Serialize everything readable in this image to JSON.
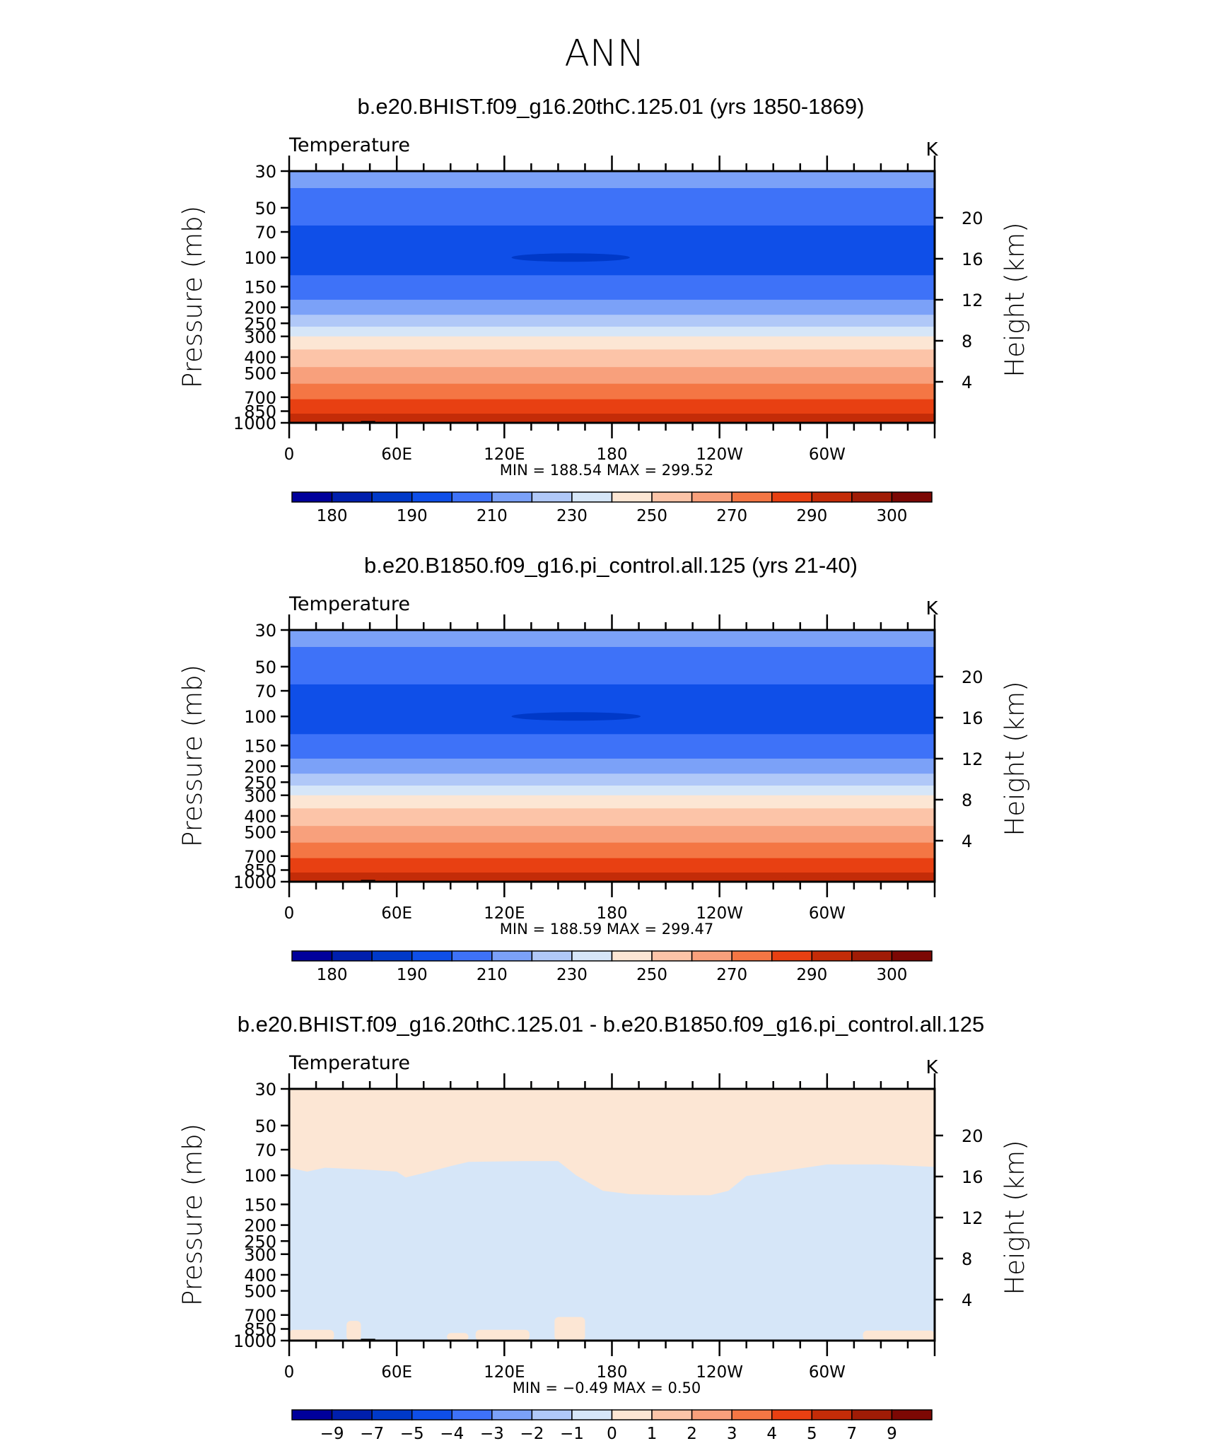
{
  "figure_title": "ANN",
  "chart_data": [
    {
      "type": "heatmap",
      "title": "b.e20.BHIST.f09_g16.20thC.125.01 (yrs 1850-1869)",
      "left_string": "Temperature",
      "units": "K",
      "ylabel": "Pressure (mb)",
      "ylabel_right": "Height (km)",
      "x_ticks": [
        "0",
        "60E",
        "120E",
        "180",
        "120W",
        "60W"
      ],
      "x_range_deg": [
        0,
        360
      ],
      "y_ticks": [
        "30",
        "50",
        "70",
        "100",
        "150",
        "200",
        "250",
        "300",
        "400",
        "500",
        "700",
        "850",
        "1000"
      ],
      "y_tick_values_mb": [
        30,
        50,
        70,
        100,
        150,
        200,
        250,
        300,
        400,
        500,
        700,
        850,
        1000
      ],
      "y_ticks_right": [
        "20",
        "16",
        "12",
        "8",
        "4"
      ],
      "y_ticks_right_values_km": [
        20,
        16,
        12,
        8,
        4
      ],
      "stats_text": "MIN =  188.54   MAX =  299.52",
      "min": 188.54,
      "max": 299.52,
      "colorbar_colors": [
        "#00009b",
        "#001fad",
        "#0039c8",
        "#0f4fe8",
        "#3e72f8",
        "#7ba1f8",
        "#b0c8f8",
        "#d6e6f8",
        "#fce6d4",
        "#fcc4a8",
        "#f8a07c",
        "#f47644",
        "#e84012",
        "#c42c08",
        "#a01c06",
        "#7c0804"
      ],
      "colorbar_labels": [
        "180",
        "190",
        "210",
        "230",
        "250",
        "270",
        "290",
        "300"
      ],
      "bands": [
        {
          "p_top": 30,
          "p_bot": 38,
          "color_index": 5
        },
        {
          "p_top": 38,
          "p_bot": 64,
          "color_index": 4
        },
        {
          "p_top": 64,
          "p_bot": 128,
          "color_index": 3
        },
        {
          "p_top": 128,
          "p_bot": 180,
          "color_index": 4
        },
        {
          "p_top": 180,
          "p_bot": 222,
          "color_index": 5
        },
        {
          "p_top": 222,
          "p_bot": 262,
          "color_index": 6
        },
        {
          "p_top": 262,
          "p_bot": 300,
          "color_index": 7
        },
        {
          "p_top": 300,
          "p_bot": 360,
          "color_index": 8
        },
        {
          "p_top": 360,
          "p_bot": 460,
          "color_index": 9
        },
        {
          "p_top": 460,
          "p_bot": 580,
          "color_index": 10
        },
        {
          "p_top": 580,
          "p_bot": 720,
          "color_index": 11
        },
        {
          "p_top": 720,
          "p_bot": 880,
          "color_index": 12
        },
        {
          "p_top": 880,
          "p_bot": 1000,
          "color_index": 13
        }
      ],
      "cold_core": {
        "lon": 157,
        "p": 100,
        "lon_halfwidth": 33,
        "color_index": 2
      }
    },
    {
      "type": "heatmap",
      "title": "b.e20.B1850.f09_g16.pi_control.all.125 (yrs 21-40)",
      "left_string": "Temperature",
      "units": "K",
      "ylabel": "Pressure (mb)",
      "ylabel_right": "Height (km)",
      "x_ticks": [
        "0",
        "60E",
        "120E",
        "180",
        "120W",
        "60W"
      ],
      "x_range_deg": [
        0,
        360
      ],
      "y_ticks": [
        "30",
        "50",
        "70",
        "100",
        "150",
        "200",
        "250",
        "300",
        "400",
        "500",
        "700",
        "850",
        "1000"
      ],
      "y_tick_values_mb": [
        30,
        50,
        70,
        100,
        150,
        200,
        250,
        300,
        400,
        500,
        700,
        850,
        1000
      ],
      "y_ticks_right": [
        "20",
        "16",
        "12",
        "8",
        "4"
      ],
      "y_ticks_right_values_km": [
        20,
        16,
        12,
        8,
        4
      ],
      "stats_text": "MIN =  188.59   MAX =  299.47",
      "min": 188.59,
      "max": 299.47,
      "colorbar_colors": [
        "#00009b",
        "#001fad",
        "#0039c8",
        "#0f4fe8",
        "#3e72f8",
        "#7ba1f8",
        "#b0c8f8",
        "#d6e6f8",
        "#fce6d4",
        "#fcc4a8",
        "#f8a07c",
        "#f47644",
        "#e84012",
        "#c42c08",
        "#a01c06",
        "#7c0804"
      ],
      "colorbar_labels": [
        "180",
        "190",
        "210",
        "230",
        "250",
        "270",
        "290",
        "300"
      ],
      "bands": [
        {
          "p_top": 30,
          "p_bot": 38,
          "color_index": 5
        },
        {
          "p_top": 38,
          "p_bot": 64,
          "color_index": 4
        },
        {
          "p_top": 64,
          "p_bot": 128,
          "color_index": 3
        },
        {
          "p_top": 128,
          "p_bot": 180,
          "color_index": 4
        },
        {
          "p_top": 180,
          "p_bot": 222,
          "color_index": 5
        },
        {
          "p_top": 222,
          "p_bot": 262,
          "color_index": 6
        },
        {
          "p_top": 262,
          "p_bot": 300,
          "color_index": 7
        },
        {
          "p_top": 300,
          "p_bot": 360,
          "color_index": 8
        },
        {
          "p_top": 360,
          "p_bot": 460,
          "color_index": 9
        },
        {
          "p_top": 460,
          "p_bot": 580,
          "color_index": 10
        },
        {
          "p_top": 580,
          "p_bot": 720,
          "color_index": 11
        },
        {
          "p_top": 720,
          "p_bot": 880,
          "color_index": 12
        },
        {
          "p_top": 880,
          "p_bot": 1000,
          "color_index": 13
        }
      ],
      "cold_core": {
        "lon": 160,
        "p": 100,
        "lon_halfwidth": 36,
        "color_index": 2
      }
    },
    {
      "type": "heatmap",
      "title": "b.e20.BHIST.f09_g16.20thC.125.01 - b.e20.B1850.f09_g16.pi_control.all.125",
      "left_string": "Temperature",
      "units": "K",
      "ylabel": "Pressure (mb)",
      "ylabel_right": "Height (km)",
      "x_ticks": [
        "0",
        "60E",
        "120E",
        "180",
        "120W",
        "60W"
      ],
      "x_range_deg": [
        0,
        360
      ],
      "y_ticks": [
        "30",
        "50",
        "70",
        "100",
        "150",
        "200",
        "250",
        "300",
        "400",
        "500",
        "700",
        "850",
        "1000"
      ],
      "y_tick_values_mb": [
        30,
        50,
        70,
        100,
        150,
        200,
        250,
        300,
        400,
        500,
        700,
        850,
        1000
      ],
      "y_ticks_right": [
        "20",
        "16",
        "12",
        "8",
        "4"
      ],
      "y_ticks_right_values_km": [
        20,
        16,
        12,
        8,
        4
      ],
      "stats_text": "MIN =   −0.49   MAX =    0.50",
      "min": -0.49,
      "max": 0.5,
      "colorbar_colors": [
        "#00009b",
        "#001fad",
        "#0039c8",
        "#0f4fe8",
        "#3e72f8",
        "#7ba1f8",
        "#b0c8f8",
        "#d6e6f8",
        "#fce6d4",
        "#fcc4a8",
        "#f8a07c",
        "#f47644",
        "#e84012",
        "#c42c08",
        "#a01c06",
        "#7c0804"
      ],
      "colorbar_labels": [
        "−9",
        "−7",
        "−5",
        "−4",
        "−3",
        "−2",
        "−1",
        "0",
        "1",
        "2",
        "3",
        "4",
        "5",
        "7",
        "9"
      ],
      "background_color_index": 8,
      "negative_color_index": 7,
      "negative_region_top_boundary": {
        "lon": [
          0,
          10,
          20,
          40,
          60,
          65,
          75,
          90,
          100,
          130,
          150,
          160,
          175,
          190,
          215,
          235,
          245,
          255,
          270,
          300,
          330,
          360
        ],
        "p": [
          90,
          95,
          90,
          92,
          95,
          103,
          97,
          88,
          83,
          82,
          82,
          100,
          124,
          130,
          132,
          132,
          124,
          101,
          96,
          86,
          86,
          89
        ]
      },
      "warm_patches_near_surface": [
        {
          "lon_start": 0,
          "lon_end": 25,
          "p_top": 860,
          "color_index": 8
        },
        {
          "lon_start": 32,
          "lon_end": 40,
          "p_top": 760,
          "color_index": 8
        },
        {
          "lon_start": 88,
          "lon_end": 100,
          "p_top": 900,
          "color_index": 8
        },
        {
          "lon_start": 104,
          "lon_end": 134,
          "p_top": 860,
          "color_index": 8
        },
        {
          "lon_start": 148,
          "lon_end": 165,
          "p_top": 720,
          "color_index": 8
        },
        {
          "lon_start": 320,
          "lon_end": 360,
          "p_top": 870,
          "color_index": 8
        }
      ]
    }
  ]
}
